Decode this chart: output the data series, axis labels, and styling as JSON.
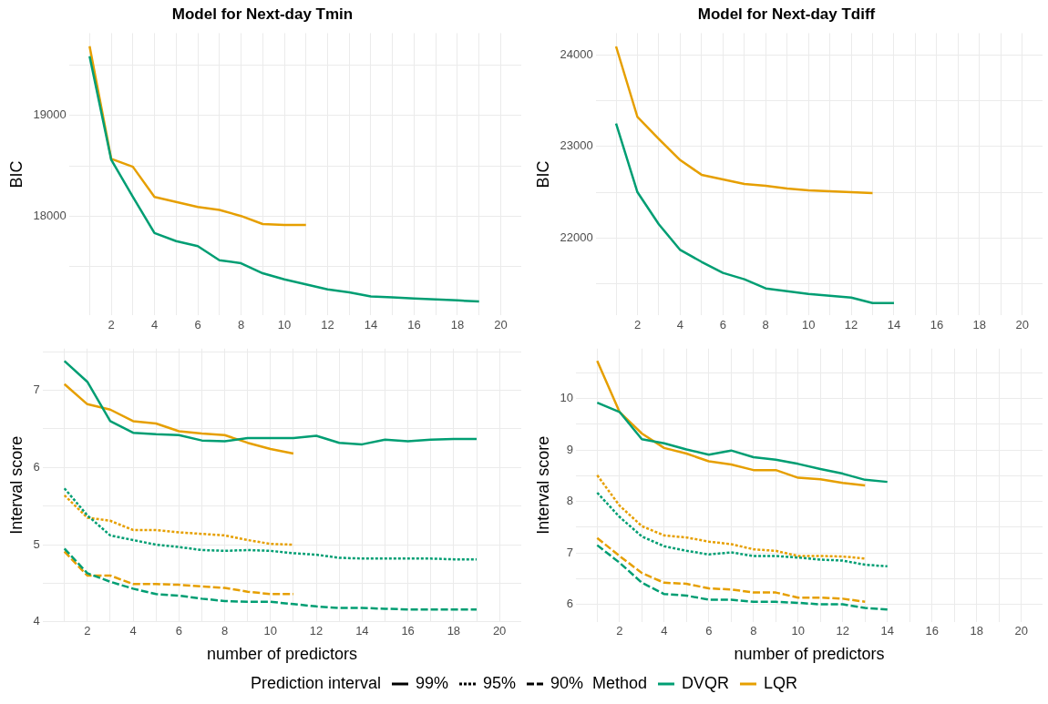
{
  "chart_data": [
    {
      "type": "line",
      "title": "Model for Next-day Tmin",
      "ylabel": "BIC",
      "xlim": [
        0.05,
        20.95
      ],
      "xticks": [
        {
          "value": 1,
          "label": null
        },
        2,
        {
          "value": 3,
          "label": null
        },
        4,
        {
          "value": 5,
          "label": null
        },
        6,
        {
          "value": 7,
          "label": null
        },
        8,
        {
          "value": 9,
          "label": null
        },
        10,
        {
          "value": 11,
          "label": null
        },
        12,
        {
          "value": 13,
          "label": null
        },
        14,
        {
          "value": 15,
          "label": null
        },
        16,
        {
          "value": 17,
          "label": null
        },
        18,
        {
          "value": 19,
          "label": null
        },
        20
      ],
      "ylim": [
        17010,
        19820
      ],
      "yticks": [
        {
          "value": 17500,
          "label": null
        },
        18000,
        {
          "value": 18500,
          "label": null
        },
        19000,
        {
          "value": 19500,
          "label": null
        }
      ],
      "grid": true,
      "marker": "none",
      "series": [
        {
          "color": "#009e73",
          "line_style": "solid",
          "x": [
            1,
            2,
            3,
            4,
            5,
            6,
            7,
            8,
            9,
            10,
            11,
            12,
            13,
            14,
            15,
            16,
            17,
            18,
            19
          ],
          "values": [
            19590,
            18560,
            18190,
            17830,
            17750,
            17700,
            17560,
            17530,
            17430,
            17370,
            17320,
            17270,
            17240,
            17200,
            17190,
            17180,
            17170,
            17160,
            17150
          ]
        },
        {
          "color": "#e69f00",
          "line_style": "solid",
          "x": [
            1,
            2,
            3,
            4,
            5,
            6,
            7,
            8,
            9,
            10,
            11
          ],
          "values": [
            19690,
            18570,
            18490,
            18190,
            18140,
            18090,
            18060,
            18000,
            17920,
            17910,
            17910
          ]
        }
      ]
    },
    {
      "type": "line",
      "title": "Model for Next-day Tdiff",
      "ylabel": "BIC",
      "xlim": [
        0.05,
        20.95
      ],
      "xticks": [
        {
          "value": 1,
          "label": null
        },
        2,
        {
          "value": 3,
          "label": null
        },
        4,
        {
          "value": 5,
          "label": null
        },
        6,
        {
          "value": 7,
          "label": null
        },
        8,
        {
          "value": 9,
          "label": null
        },
        10,
        {
          "value": 11,
          "label": null
        },
        12,
        {
          "value": 13,
          "label": null
        },
        14,
        {
          "value": 15,
          "label": null
        },
        16,
        {
          "value": 17,
          "label": null
        },
        18,
        {
          "value": 19,
          "label": null
        },
        20
      ],
      "ylim": [
        21155,
        24235
      ],
      "yticks": [
        {
          "value": 21500,
          "label": null
        },
        22000,
        {
          "value": 22500,
          "label": null
        },
        23000,
        {
          "value": 23500,
          "label": null
        },
        24000
      ],
      "grid": true,
      "marker": "none",
      "series": [
        {
          "color": "#009e73",
          "line_style": "solid",
          "x": [
            1,
            2,
            3,
            4,
            5,
            6,
            7,
            8,
            9,
            10,
            11,
            12,
            13,
            14
          ],
          "values": [
            23250,
            22500,
            22150,
            21870,
            21740,
            21620,
            21550,
            21450,
            21420,
            21390,
            21370,
            21350,
            21290,
            21290
          ]
        },
        {
          "color": "#e69f00",
          "line_style": "solid",
          "x": [
            1,
            2,
            3,
            4,
            5,
            6,
            7,
            8,
            9,
            10,
            11,
            12,
            13
          ],
          "values": [
            24090,
            23320,
            23080,
            22850,
            22690,
            22640,
            22590,
            22570,
            22540,
            22520,
            22510,
            22500,
            22490
          ]
        }
      ]
    },
    {
      "type": "line",
      "xlabel": "number of predictors",
      "ylabel": "Interval score",
      "xlim": [
        0.05,
        20.95
      ],
      "xticks": [
        {
          "value": 1,
          "label": null
        },
        2,
        {
          "value": 3,
          "label": null
        },
        4,
        {
          "value": 5,
          "label": null
        },
        6,
        {
          "value": 7,
          "label": null
        },
        8,
        {
          "value": 9,
          "label": null
        },
        10,
        {
          "value": 11,
          "label": null
        },
        12,
        {
          "value": 13,
          "label": null
        },
        14,
        {
          "value": 15,
          "label": null
        },
        16,
        {
          "value": 17,
          "label": null
        },
        18,
        {
          "value": 19,
          "label": null
        },
        20
      ],
      "ylim": [
        4.0,
        7.54
      ],
      "yticks": [
        4,
        {
          "value": 4.5,
          "label": null
        },
        5,
        {
          "value": 5.5,
          "label": null
        },
        6,
        {
          "value": 6.5,
          "label": null
        },
        7,
        {
          "value": 7.5,
          "label": null
        }
      ],
      "grid": true,
      "marker": "none",
      "legend": "bottom",
      "legend_title": "Method",
      "annotations": [
        "Prediction interval",
        "99%",
        "95%",
        "90%"
      ],
      "series": [
        {
          "name": "DVQR",
          "color": "#009e73",
          "line_style": "solid",
          "x": [
            1,
            2,
            3,
            4,
            5,
            6,
            7,
            8,
            9,
            10,
            11,
            12,
            13,
            14,
            15,
            16,
            17,
            18,
            19
          ],
          "values": [
            7.38,
            7.11,
            6.6,
            6.45,
            6.43,
            6.42,
            6.35,
            6.34,
            6.38,
            6.38,
            6.38,
            6.41,
            6.32,
            6.3,
            6.36,
            6.34,
            6.36,
            6.37,
            6.37
          ]
        },
        {
          "name": "LQR",
          "color": "#e69f00",
          "line_style": "solid",
          "x": [
            1,
            2,
            3,
            4,
            5,
            6,
            7,
            8,
            9,
            10,
            11
          ],
          "values": [
            7.08,
            6.82,
            6.75,
            6.6,
            6.57,
            6.47,
            6.44,
            6.42,
            6.32,
            6.24,
            6.18
          ]
        },
        {
          "color": "#009e73",
          "line_style": "dotted",
          "x": [
            1,
            2,
            3,
            4,
            5,
            6,
            7,
            8,
            9,
            10,
            11,
            12,
            13,
            14,
            15,
            16,
            17,
            18,
            19
          ],
          "values": [
            5.73,
            5.38,
            5.12,
            5.06,
            5.0,
            4.97,
            4.93,
            4.92,
            4.93,
            4.92,
            4.89,
            4.87,
            4.83,
            4.82,
            4.82,
            4.82,
            4.82,
            4.81,
            4.81
          ]
        },
        {
          "color": "#e69f00",
          "line_style": "dotted",
          "x": [
            1,
            2,
            3,
            4,
            5,
            6,
            7,
            8,
            9,
            10,
            11
          ],
          "values": [
            5.64,
            5.35,
            5.31,
            5.19,
            5.19,
            5.16,
            5.14,
            5.12,
            5.06,
            5.01,
            5.0
          ]
        },
        {
          "color": "#009e73",
          "line_style": "dashed",
          "x": [
            1,
            2,
            3,
            4,
            5,
            6,
            7,
            8,
            9,
            10,
            11,
            12,
            13,
            14,
            15,
            16,
            17,
            18,
            19
          ],
          "values": [
            4.95,
            4.63,
            4.52,
            4.43,
            4.36,
            4.34,
            4.3,
            4.27,
            4.26,
            4.26,
            4.23,
            4.2,
            4.18,
            4.18,
            4.17,
            4.16,
            4.16,
            4.16,
            4.16
          ]
        },
        {
          "color": "#e69f00",
          "line_style": "dashed",
          "x": [
            1,
            2,
            3,
            4,
            5,
            6,
            7,
            8,
            9,
            10,
            11
          ],
          "values": [
            4.91,
            4.6,
            4.6,
            4.49,
            4.49,
            4.48,
            4.46,
            4.44,
            4.39,
            4.36,
            4.36
          ]
        }
      ]
    },
    {
      "type": "line",
      "xlabel": "number of predictors",
      "ylabel": "Interval score",
      "xlim": [
        0.05,
        20.95
      ],
      "xticks": [
        {
          "value": 1,
          "label": null
        },
        2,
        {
          "value": 3,
          "label": null
        },
        4,
        {
          "value": 5,
          "label": null
        },
        6,
        {
          "value": 7,
          "label": null
        },
        8,
        {
          "value": 9,
          "label": null
        },
        10,
        {
          "value": 11,
          "label": null
        },
        12,
        {
          "value": 13,
          "label": null
        },
        14,
        {
          "value": 15,
          "label": null
        },
        16,
        {
          "value": 17,
          "label": null
        },
        18,
        {
          "value": 19,
          "label": null
        },
        20
      ],
      "ylim": [
        5.66,
        10.97
      ],
      "yticks": [
        6,
        {
          "value": 6.5,
          "label": null
        },
        7,
        {
          "value": 7.5,
          "label": null
        },
        8,
        {
          "value": 8.5,
          "label": null
        },
        9,
        {
          "value": 9.5,
          "label": null
        },
        10,
        {
          "value": 10.5,
          "label": null
        }
      ],
      "grid": true,
      "marker": "none",
      "series": [
        {
          "color": "#009e73",
          "line_style": "solid",
          "x": [
            1,
            2,
            3,
            4,
            5,
            6,
            7,
            8,
            9,
            10,
            11,
            12,
            13,
            14
          ],
          "values": [
            9.92,
            9.74,
            9.21,
            9.13,
            9.01,
            8.91,
            8.99,
            8.86,
            8.81,
            8.73,
            8.63,
            8.54,
            8.42,
            8.38
          ]
        },
        {
          "color": "#e69f00",
          "line_style": "solid",
          "x": [
            1,
            2,
            3,
            4,
            5,
            6,
            7,
            8,
            9,
            10,
            11,
            12,
            13
          ],
          "values": [
            10.73,
            9.74,
            9.32,
            9.04,
            8.93,
            8.78,
            8.72,
            8.61,
            8.61,
            8.46,
            8.43,
            8.36,
            8.31
          ]
        },
        {
          "color": "#009e73",
          "line_style": "dotted",
          "x": [
            1,
            2,
            3,
            4,
            5,
            6,
            7,
            8,
            9,
            10,
            11,
            12,
            13,
            14
          ],
          "values": [
            8.17,
            7.7,
            7.32,
            7.13,
            7.04,
            6.97,
            7.01,
            6.94,
            6.94,
            6.91,
            6.87,
            6.85,
            6.77,
            6.74
          ]
        },
        {
          "color": "#e69f00",
          "line_style": "dotted",
          "x": [
            1,
            2,
            3,
            4,
            5,
            6,
            7,
            8,
            9,
            10,
            11,
            12,
            13
          ],
          "values": [
            8.51,
            7.92,
            7.52,
            7.34,
            7.3,
            7.22,
            7.17,
            7.07,
            7.04,
            6.94,
            6.94,
            6.93,
            6.89
          ]
        },
        {
          "color": "#009e73",
          "line_style": "dashed",
          "x": [
            1,
            2,
            3,
            4,
            5,
            6,
            7,
            8,
            9,
            10,
            11,
            12,
            13,
            14
          ],
          "values": [
            7.15,
            6.81,
            6.42,
            6.2,
            6.17,
            6.09,
            6.09,
            6.05,
            6.05,
            6.03,
            6.0,
            6.0,
            5.93,
            5.9
          ]
        },
        {
          "color": "#e69f00",
          "line_style": "dashed",
          "x": [
            1,
            2,
            3,
            4,
            5,
            6,
            7,
            8,
            9,
            10,
            11,
            12,
            13
          ],
          "values": [
            7.29,
            6.94,
            6.61,
            6.42,
            6.4,
            6.31,
            6.29,
            6.23,
            6.23,
            6.13,
            6.13,
            6.11,
            6.05
          ]
        }
      ]
    }
  ]
}
